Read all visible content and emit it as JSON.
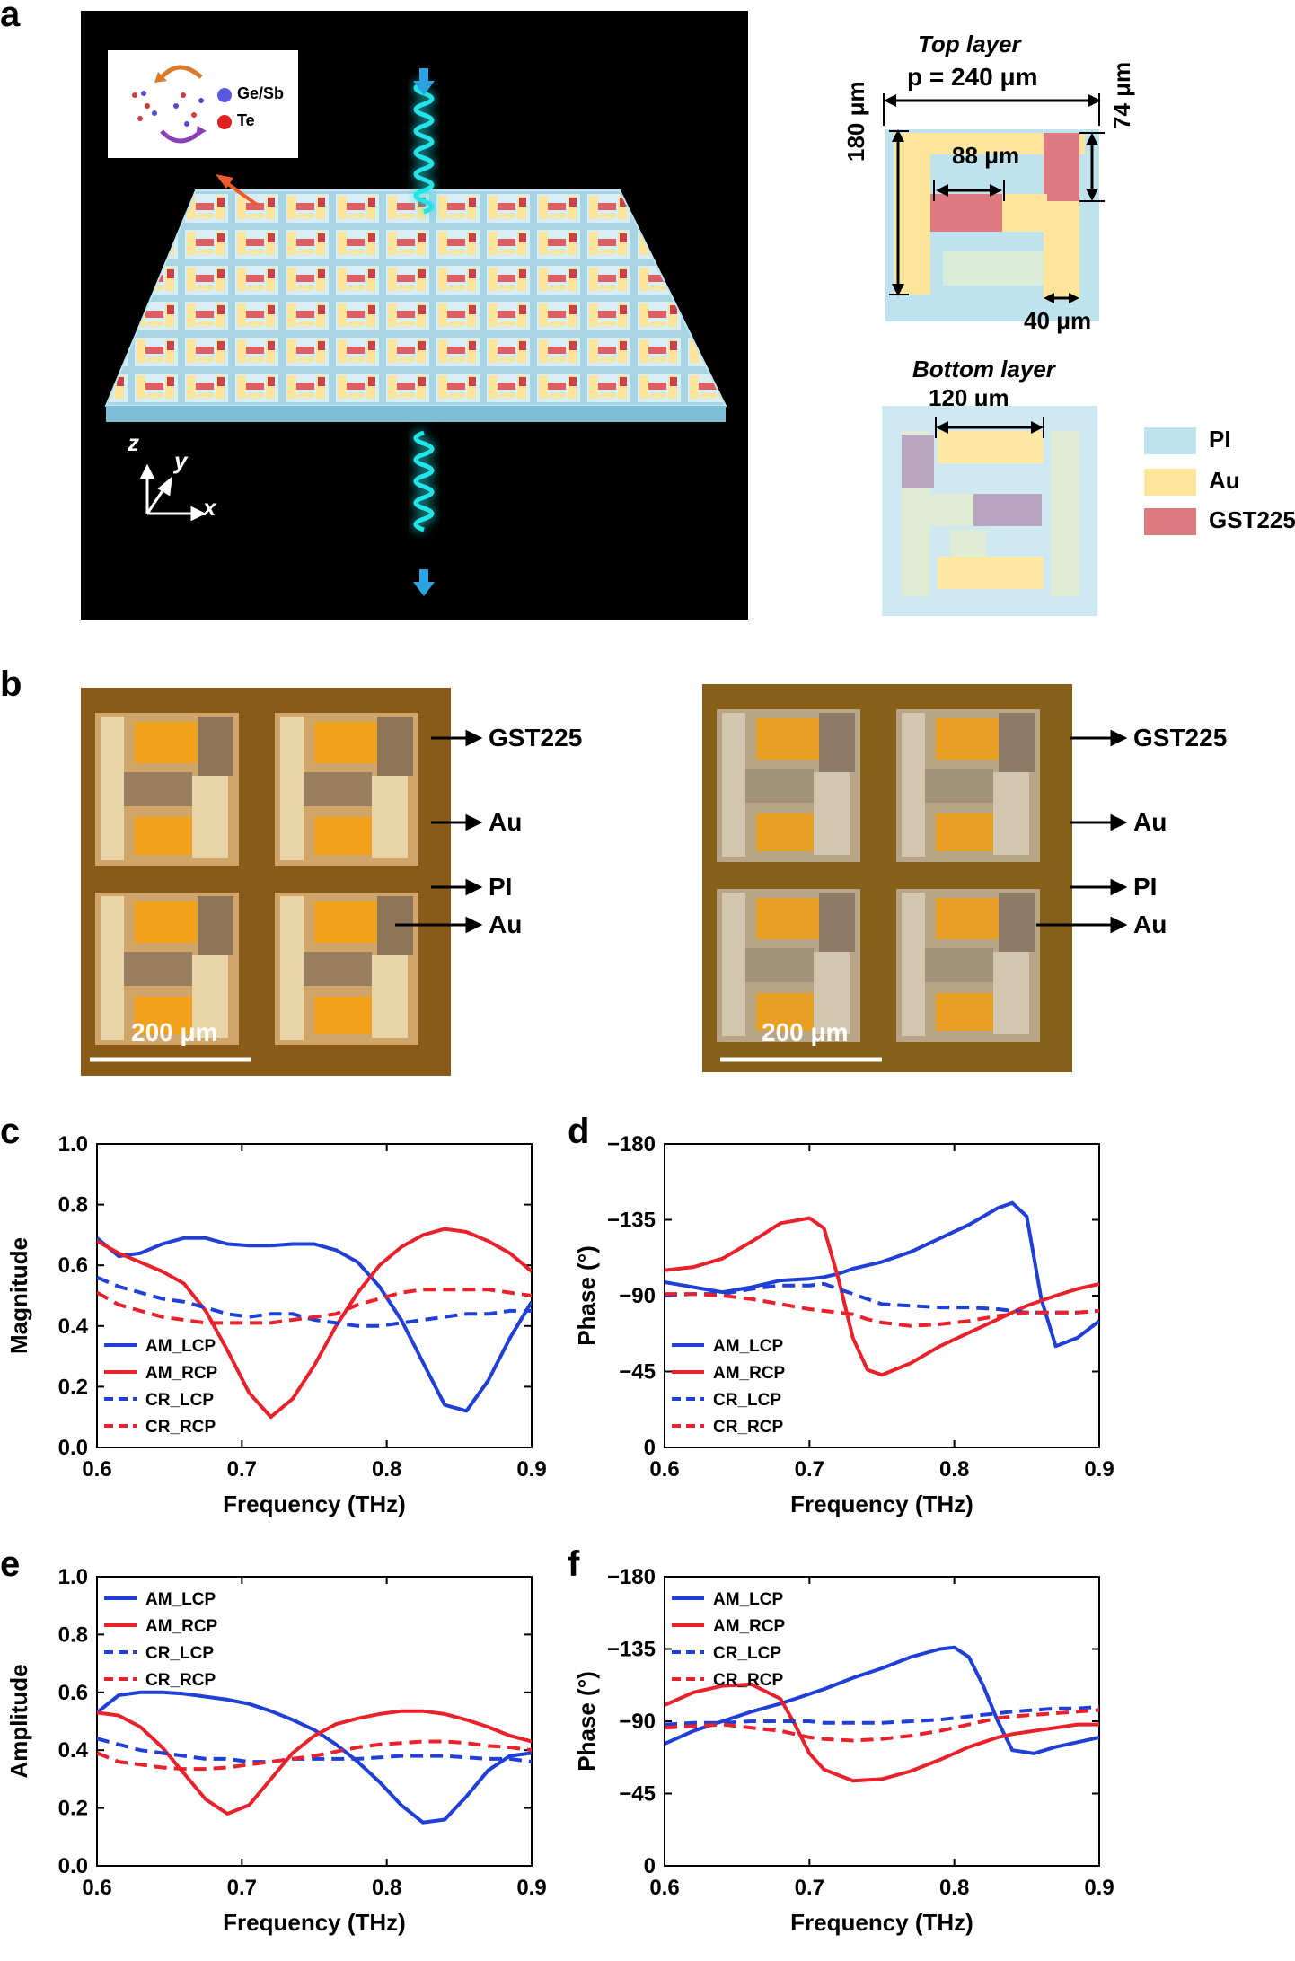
{
  "panels": {
    "a": "a",
    "b": "b",
    "c": "c",
    "d": "d",
    "e": "e",
    "f": "f"
  },
  "schematic": {
    "inset_legend": [
      "Ge/Sb",
      "Te"
    ],
    "axes": {
      "z": "z",
      "y": "y",
      "x": "x"
    },
    "colors": {
      "background": "#000000",
      "wave": "#22e3e8",
      "arrow": "#2aa3e0"
    }
  },
  "top_layer": {
    "title": "Top layer",
    "period": "p = 240 μm",
    "dim_height": "180 μm",
    "dim_gap": "88 μm",
    "dim_gst": "74 μm",
    "dim_width": "40 μm"
  },
  "bottom_layer": {
    "title": "Bottom layer",
    "dim_gap": "120 μm"
  },
  "materials_legend": [
    {
      "label": "PI",
      "color": "#bfe3ee"
    },
    {
      "label": "Au",
      "color": "#fde59c"
    },
    {
      "label": "GST225",
      "color": "#de7b80"
    }
  ],
  "micrographs": {
    "labels": [
      "GST225",
      "Au",
      "PI",
      "Au"
    ],
    "scale_bar": "200 μm"
  },
  "chart_data": [
    {
      "panel": "c",
      "type": "line",
      "xlabel": "Frequency (THz)",
      "ylabel": "Magnitude",
      "xlim": [
        0.6,
        0.9
      ],
      "ylim": [
        0.0,
        1.0
      ],
      "xticks": [
        "0.6",
        "0.7",
        "0.8",
        "0.9"
      ],
      "yticks": [
        "0.0",
        "0.2",
        "0.4",
        "0.6",
        "0.8",
        "1.0"
      ],
      "legend_position": "bottom-left",
      "x": [
        0.6,
        0.615,
        0.63,
        0.645,
        0.66,
        0.675,
        0.69,
        0.705,
        0.72,
        0.735,
        0.75,
        0.765,
        0.78,
        0.795,
        0.81,
        0.825,
        0.84,
        0.855,
        0.87,
        0.885,
        0.9
      ],
      "series": [
        {
          "name": "AM_LCP",
          "color": "#1f3fd6",
          "dash": false,
          "values": [
            0.69,
            0.63,
            0.64,
            0.67,
            0.69,
            0.69,
            0.67,
            0.665,
            0.665,
            0.67,
            0.67,
            0.65,
            0.61,
            0.53,
            0.42,
            0.28,
            0.14,
            0.12,
            0.22,
            0.36,
            0.48
          ]
        },
        {
          "name": "AM_RCP",
          "color": "#e8212a",
          "dash": false,
          "values": [
            0.68,
            0.64,
            0.61,
            0.58,
            0.54,
            0.45,
            0.32,
            0.18,
            0.1,
            0.16,
            0.27,
            0.4,
            0.51,
            0.6,
            0.66,
            0.7,
            0.72,
            0.71,
            0.68,
            0.64,
            0.58
          ]
        },
        {
          "name": "CR_LCP",
          "color": "#1f3fd6",
          "dash": true,
          "values": [
            0.56,
            0.53,
            0.51,
            0.49,
            0.48,
            0.46,
            0.44,
            0.43,
            0.44,
            0.44,
            0.42,
            0.41,
            0.4,
            0.4,
            0.41,
            0.42,
            0.43,
            0.44,
            0.44,
            0.45,
            0.45
          ]
        },
        {
          "name": "CR_RCP",
          "color": "#e8212a",
          "dash": true,
          "values": [
            0.51,
            0.47,
            0.45,
            0.43,
            0.42,
            0.41,
            0.41,
            0.41,
            0.41,
            0.42,
            0.43,
            0.44,
            0.47,
            0.49,
            0.51,
            0.52,
            0.52,
            0.52,
            0.52,
            0.51,
            0.5
          ]
        }
      ]
    },
    {
      "panel": "d",
      "type": "line",
      "xlabel": "Frequency (THz)",
      "ylabel": "Phase (°)",
      "xlim": [
        0.6,
        0.9
      ],
      "ylim": [
        0,
        -180
      ],
      "xticks": [
        "0.6",
        "0.7",
        "0.8",
        "0.9"
      ],
      "yticks": [
        "0",
        "−45",
        "−90",
        "−135",
        "−180"
      ],
      "legend_position": "bottom-left",
      "x": [
        0.6,
        0.62,
        0.64,
        0.66,
        0.68,
        0.7,
        0.71,
        0.72,
        0.73,
        0.74,
        0.75,
        0.77,
        0.79,
        0.81,
        0.83,
        0.84,
        0.85,
        0.86,
        0.87,
        0.885,
        0.9
      ],
      "series": [
        {
          "name": "AM_LCP",
          "color": "#1f3fd6",
          "dash": false,
          "values": [
            -98,
            -95,
            -92,
            -95,
            -99,
            -100,
            -101,
            -103,
            -106,
            -108,
            -110,
            -116,
            -124,
            -132,
            -142,
            -145,
            -137,
            -88,
            -60,
            -65,
            -75
          ]
        },
        {
          "name": "AM_RCP",
          "color": "#e8212a",
          "dash": false,
          "values": [
            -105,
            -107,
            -112,
            -122,
            -133,
            -136,
            -130,
            -100,
            -65,
            -46,
            -43,
            -50,
            -60,
            -68,
            -76,
            -80,
            -84,
            -87,
            -90,
            -94,
            -97
          ]
        },
        {
          "name": "CR_LCP",
          "color": "#1f3fd6",
          "dash": true,
          "values": [
            -90,
            -91,
            -91,
            -94,
            -96,
            -96,
            -97,
            -94,
            -91,
            -88,
            -85,
            -84,
            -83,
            -83,
            -82,
            -81,
            -80,
            -80,
            -80,
            -80,
            -81
          ]
        },
        {
          "name": "CR_RCP",
          "color": "#e8212a",
          "dash": true,
          "values": [
            -91,
            -91,
            -90,
            -88,
            -85,
            -82,
            -81,
            -80,
            -79,
            -76,
            -74,
            -72,
            -73,
            -75,
            -78,
            -79,
            -80,
            -80,
            -80,
            -80,
            -81
          ]
        }
      ]
    },
    {
      "panel": "e",
      "type": "line",
      "xlabel": "Frequency (THz)",
      "ylabel": "Amplitude",
      "xlim": [
        0.6,
        0.9
      ],
      "ylim": [
        0.0,
        1.0
      ],
      "xticks": [
        "0.6",
        "0.7",
        "0.8",
        "0.9"
      ],
      "yticks": [
        "0.0",
        "0.2",
        "0.4",
        "0.6",
        "0.8",
        "1.0"
      ],
      "legend_position": "top-left",
      "x": [
        0.6,
        0.615,
        0.63,
        0.645,
        0.66,
        0.675,
        0.69,
        0.705,
        0.72,
        0.735,
        0.75,
        0.765,
        0.78,
        0.795,
        0.81,
        0.825,
        0.84,
        0.855,
        0.87,
        0.885,
        0.9
      ],
      "series": [
        {
          "name": "AM_LCP",
          "color": "#1f3fd6",
          "dash": false,
          "values": [
            0.53,
            0.59,
            0.6,
            0.6,
            0.595,
            0.585,
            0.575,
            0.56,
            0.535,
            0.505,
            0.47,
            0.42,
            0.36,
            0.29,
            0.21,
            0.15,
            0.16,
            0.24,
            0.33,
            0.38,
            0.39
          ]
        },
        {
          "name": "AM_RCP",
          "color": "#e8212a",
          "dash": false,
          "values": [
            0.53,
            0.52,
            0.48,
            0.41,
            0.32,
            0.23,
            0.18,
            0.21,
            0.3,
            0.39,
            0.45,
            0.49,
            0.51,
            0.525,
            0.535,
            0.535,
            0.525,
            0.505,
            0.48,
            0.45,
            0.43
          ]
        },
        {
          "name": "CR_LCP",
          "color": "#1f3fd6",
          "dash": true,
          "values": [
            0.44,
            0.42,
            0.4,
            0.39,
            0.38,
            0.37,
            0.37,
            0.36,
            0.36,
            0.37,
            0.37,
            0.37,
            0.37,
            0.375,
            0.38,
            0.38,
            0.38,
            0.375,
            0.37,
            0.37,
            0.36
          ]
        },
        {
          "name": "CR_RCP",
          "color": "#e8212a",
          "dash": true,
          "values": [
            0.39,
            0.36,
            0.35,
            0.34,
            0.335,
            0.335,
            0.34,
            0.35,
            0.36,
            0.37,
            0.38,
            0.395,
            0.41,
            0.42,
            0.425,
            0.43,
            0.43,
            0.425,
            0.415,
            0.41,
            0.4
          ]
        }
      ]
    },
    {
      "panel": "f",
      "type": "line",
      "xlabel": "Frequency (THz)",
      "ylabel": "Phase (°)",
      "xlim": [
        0.6,
        0.9
      ],
      "ylim": [
        0,
        -180
      ],
      "xticks": [
        "0.6",
        "0.7",
        "0.8",
        "0.9"
      ],
      "yticks": [
        "0",
        "−45",
        "−90",
        "−135",
        "−180"
      ],
      "legend_position": "top-left",
      "x": [
        0.6,
        0.62,
        0.64,
        0.66,
        0.68,
        0.69,
        0.7,
        0.71,
        0.73,
        0.75,
        0.77,
        0.79,
        0.8,
        0.81,
        0.82,
        0.83,
        0.84,
        0.855,
        0.87,
        0.885,
        0.9
      ],
      "series": [
        {
          "name": "AM_LCP",
          "color": "#1f3fd6",
          "dash": false,
          "values": [
            -76,
            -84,
            -90,
            -96,
            -101,
            -104,
            -107,
            -110,
            -117,
            -123,
            -130,
            -135,
            -136,
            -130,
            -112,
            -90,
            -72,
            -70,
            -74,
            -77,
            -80
          ]
        },
        {
          "name": "AM_RCP",
          "color": "#e8212a",
          "dash": false,
          "values": [
            -100,
            -108,
            -112,
            -113,
            -104,
            -88,
            -70,
            -60,
            -53,
            -54,
            -59,
            -66,
            -70,
            -74,
            -77,
            -80,
            -82,
            -84,
            -86,
            -88,
            -88
          ]
        },
        {
          "name": "CR_LCP",
          "color": "#1f3fd6",
          "dash": true,
          "values": [
            -88,
            -89,
            -89,
            -90,
            -90,
            -90,
            -90,
            -89,
            -89,
            -89,
            -90,
            -91,
            -92,
            -93,
            -94,
            -95,
            -96,
            -97,
            -98,
            -98,
            -99
          ]
        },
        {
          "name": "CR_RCP",
          "color": "#e8212a",
          "dash": true,
          "values": [
            -86,
            -87,
            -88,
            -86,
            -84,
            -82,
            -80,
            -79,
            -78,
            -79,
            -81,
            -84,
            -86,
            -88,
            -90,
            -92,
            -93,
            -94,
            -95,
            -96,
            -97
          ]
        }
      ]
    }
  ]
}
